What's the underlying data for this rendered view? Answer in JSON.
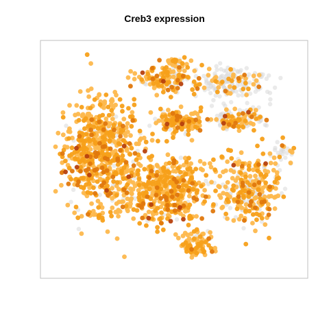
{
  "chart_data": {
    "type": "scatter",
    "title": "Creb3 expression",
    "xlabel": "",
    "ylabel": "",
    "axes_visible": false,
    "frame": true,
    "grid": false,
    "legend": "none",
    "xlim": [
      0,
      100
    ],
    "ylim": [
      0,
      100
    ],
    "colors": {
      "not_expressed": "#d9d9d9",
      "low": "#fdb84d",
      "mid": "#f7a01a",
      "high": "#e0780d",
      "max": "#b7410e",
      "frame": "#bfbfbf"
    },
    "point_count": 2200,
    "seed": 20240517,
    "clusters": [
      {
        "name": "top-center",
        "cx": 45,
        "cy": 86,
        "rx": 9,
        "ry": 5,
        "n": 130,
        "expr": 0.8
      },
      {
        "name": "top-small",
        "cx": 51,
        "cy": 93,
        "rx": 4,
        "ry": 3,
        "n": 40,
        "expr": 0.55
      },
      {
        "name": "top-right-grey",
        "cx": 72,
        "cy": 84,
        "rx": 13,
        "ry": 6,
        "n": 180,
        "expr": 0.25
      },
      {
        "name": "middle-band",
        "cx": 51,
        "cy": 67,
        "rx": 10,
        "ry": 5,
        "n": 160,
        "expr": 0.85
      },
      {
        "name": "right-upper",
        "cx": 76,
        "cy": 68,
        "rx": 9,
        "ry": 5,
        "n": 130,
        "expr": 0.45
      },
      {
        "name": "left-big",
        "cx": 20,
        "cy": 52,
        "rx": 13,
        "ry": 24,
        "n": 620,
        "expr": 0.92
      },
      {
        "name": "center-lower",
        "cx": 47,
        "cy": 36,
        "rx": 16,
        "ry": 13,
        "n": 520,
        "expr": 0.88
      },
      {
        "name": "right-lower",
        "cx": 80,
        "cy": 38,
        "rx": 11,
        "ry": 14,
        "n": 300,
        "expr": 0.75
      },
      {
        "name": "bottom",
        "cx": 59,
        "cy": 12,
        "rx": 7,
        "ry": 5,
        "n": 90,
        "expr": 0.9
      },
      {
        "name": "far-right-grey",
        "cx": 94,
        "cy": 53,
        "rx": 5,
        "ry": 5,
        "n": 30,
        "expr": 0.3
      }
    ]
  }
}
